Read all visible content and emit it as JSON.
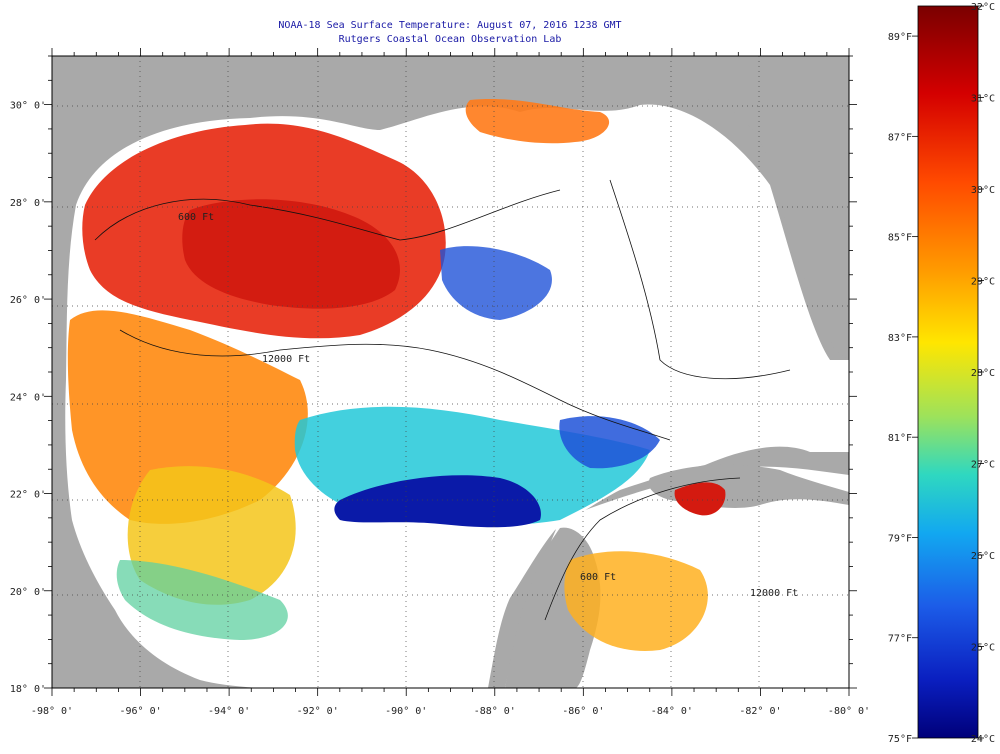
{
  "title": {
    "line1": "NOAA-18 Sea Surface Temperature:  August 07, 2016 1238 GMT",
    "line2": "Rutgers Coastal Ocean Observation Lab"
  },
  "axes": {
    "longitude_labels": [
      "-98° 0'",
      "-96° 0'",
      "-94° 0'",
      "-92° 0'",
      "-90° 0'",
      "-88° 0'",
      "-86° 0'",
      "-84° 0'",
      "-82° 0'",
      "-80° 0'"
    ],
    "latitude_labels": [
      "30° 0'",
      "28° 0'",
      "26° 0'",
      "24° 0'",
      "22° 0'",
      "20° 0'",
      "18° 0'"
    ],
    "lon_range": [
      -98,
      -80
    ],
    "lat_range": [
      18,
      31
    ]
  },
  "colorbar": {
    "celsius_labels": [
      "32°C",
      "31°C",
      "30°C",
      "29°C",
      "28°C",
      "27°C",
      "26°C",
      "25°C",
      "24°C"
    ],
    "fahrenheit_labels": [
      "89°F",
      "87°F",
      "85°F",
      "83°F",
      "81°F",
      "79°F",
      "77°F",
      "75°F"
    ],
    "range_c": [
      24,
      32
    ],
    "range_f": [
      75,
      89.6
    ]
  },
  "contour_labels": [
    "600 Ft",
    "12000 Ft",
    "12000 Ft",
    "600 Ft"
  ],
  "colors": {
    "land": "#a9a9a9",
    "no_data": "#ffffff",
    "warm": "#e8221a",
    "cool": "#0b1fa8",
    "title_text": "#1a1aa6"
  }
}
